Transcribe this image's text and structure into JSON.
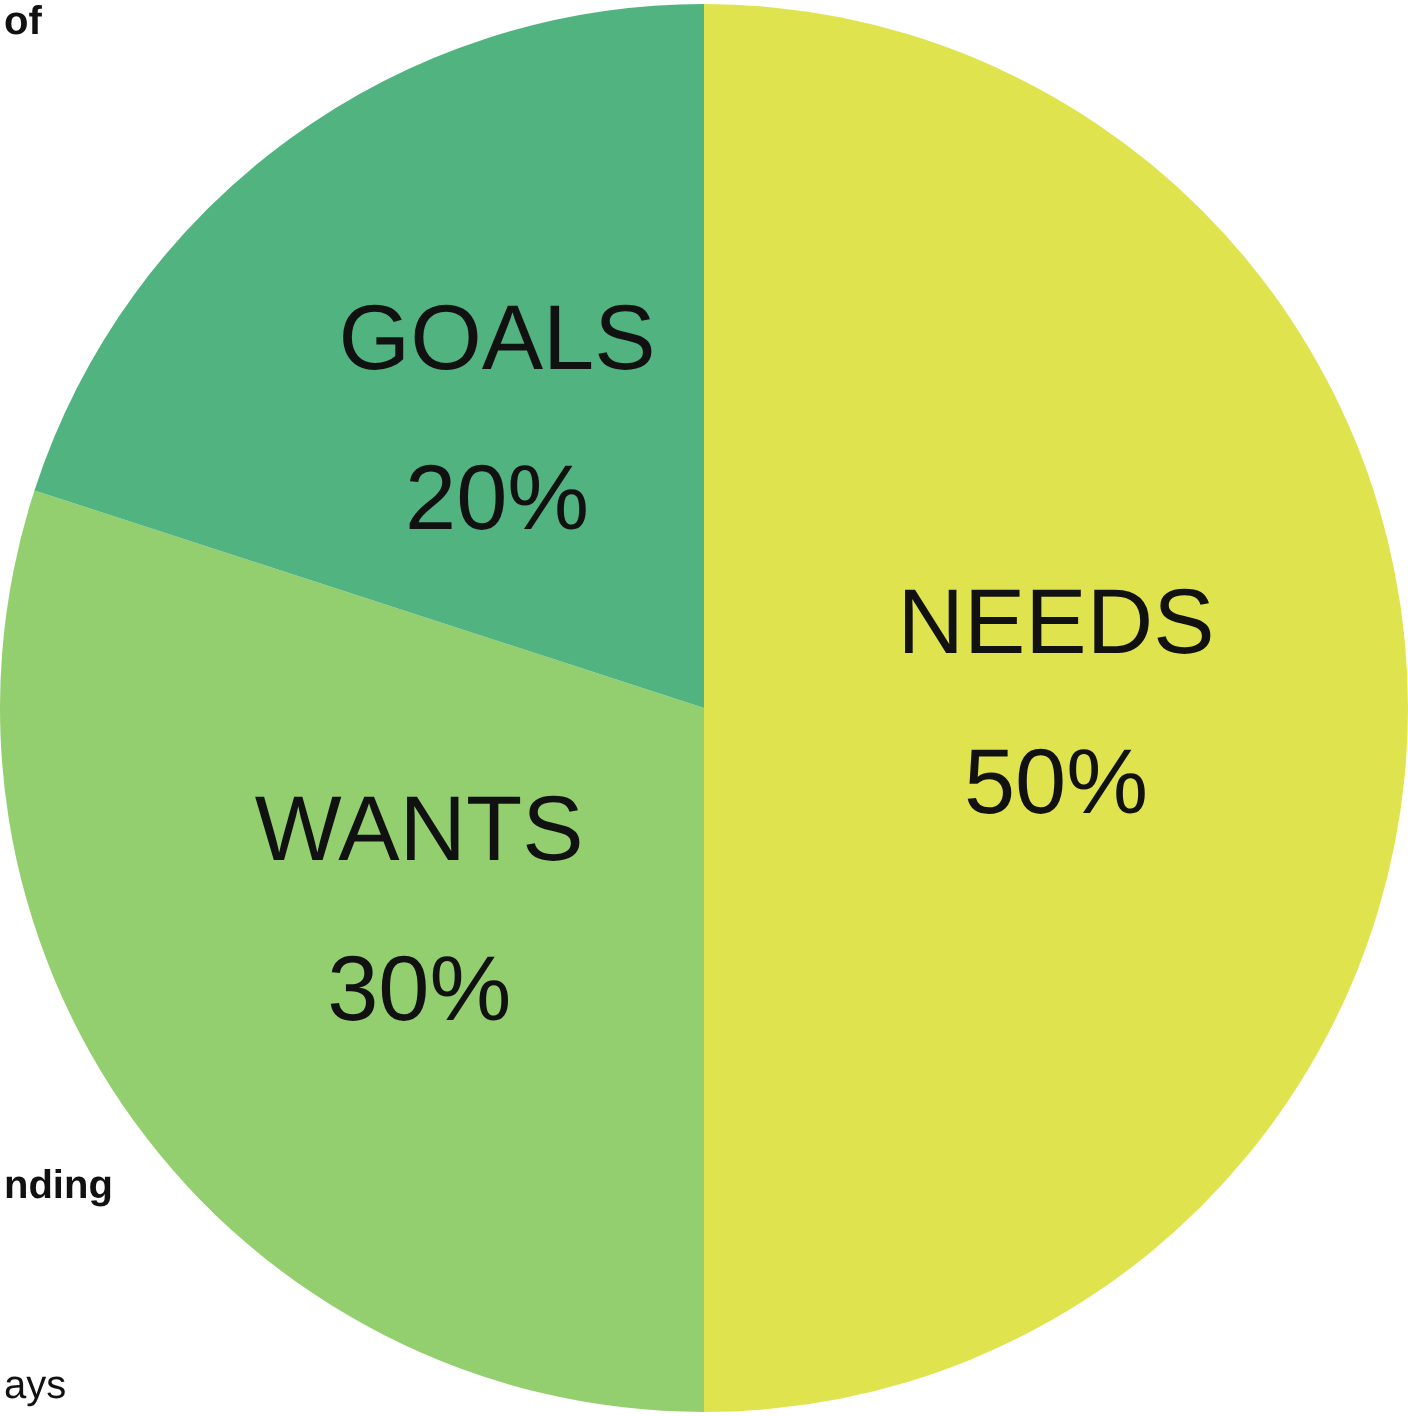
{
  "chart_data": {
    "type": "pie",
    "categories": [
      "NEEDS",
      "WANTS",
      "GOALS"
    ],
    "values": [
      50,
      30,
      20
    ],
    "colors": [
      "#dfe44e",
      "#93cf6e",
      "#50b380"
    ],
    "value_labels": [
      "50%",
      "30%",
      "20%"
    ],
    "annotations": [
      "of",
      "nding",
      "ays"
    ],
    "legend": false
  }
}
